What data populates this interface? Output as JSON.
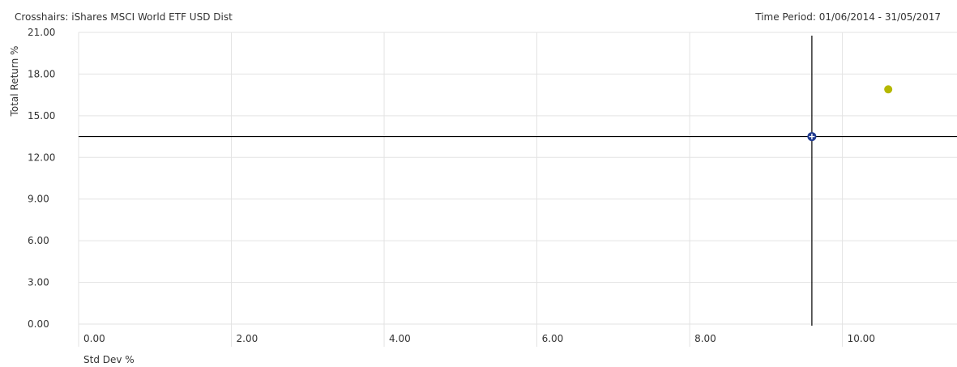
{
  "header": {
    "title": "Crosshairs: iShares MSCI World ETF USD Dist",
    "time_period": "Time Period: 01/06/2014 - 31/05/2017"
  },
  "chart_data": {
    "type": "scatter",
    "xlabel": "Std Dev %",
    "ylabel": "Total Return %",
    "xlim": [
      0,
      11.5
    ],
    "ylim": [
      0,
      21
    ],
    "x_ticks": [
      "0.00",
      "2.00",
      "4.00",
      "6.00",
      "8.00",
      "10.00"
    ],
    "y_ticks": [
      "0.00",
      "3.00",
      "6.00",
      "9.00",
      "12.00",
      "15.00",
      "18.00",
      "21.00"
    ],
    "grid": true,
    "crosshair": {
      "x": 9.6,
      "y": 13.5
    },
    "series": [
      {
        "color": "#b5b800",
        "points": [
          {
            "x": 10.6,
            "y": 16.9
          }
        ]
      }
    ],
    "colors": {
      "grid": "#e3e3e3",
      "crosshair": "#000000",
      "marker": "#1f3a8f"
    }
  }
}
